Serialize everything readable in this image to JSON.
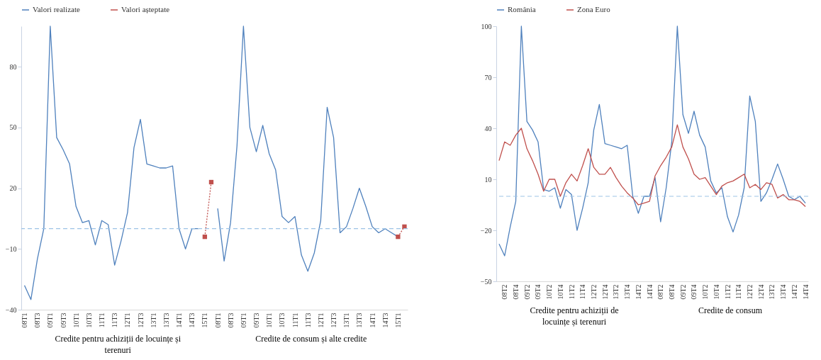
{
  "chart_data": [
    {
      "type": "line",
      "categories": [
        "08T1",
        null,
        "08T3",
        null,
        "09T1",
        null,
        "09T3",
        null,
        "10T1",
        null,
        "10T3",
        null,
        "11T1",
        null,
        "11T3",
        null,
        "12T1",
        null,
        "12T3",
        null,
        "13T1",
        null,
        "13T3",
        null,
        "14T1",
        null,
        "14T3",
        null,
        "15T1",
        null,
        "08T1",
        null,
        "08T3",
        null,
        "09T1",
        null,
        "09T3",
        null,
        "10T1",
        null,
        "10T3",
        null,
        "11T1",
        null,
        "11T3",
        null,
        "12T1",
        null,
        "12T3",
        null,
        "13T1",
        null,
        "13T3",
        null,
        "14T1",
        null,
        "14T3",
        null,
        "15T1",
        null
      ],
      "series": [
        {
          "name": "Valori realizate",
          "color": "#4f81bd",
          "values": [
            -28,
            -35,
            -15,
            0,
            100,
            45,
            39,
            32,
            11,
            3,
            4,
            -8,
            4,
            2,
            -18,
            -6,
            8,
            40,
            54,
            32,
            31,
            30,
            30,
            31,
            0,
            -10,
            0,
            0,
            null,
            null,
            10,
            -16,
            3,
            41,
            100,
            50,
            38,
            51,
            37,
            29,
            6,
            3,
            6,
            -13,
            -21,
            -12,
            4,
            60,
            45,
            -2,
            1,
            10,
            20,
            11,
            1,
            -2,
            0,
            -2,
            -4,
            null
          ]
        },
        {
          "name": "Valori așteptate",
          "color": "#c0504d",
          "line_style": "dotted",
          "marker": "square",
          "values": [
            null,
            null,
            null,
            null,
            null,
            null,
            null,
            null,
            null,
            null,
            null,
            null,
            null,
            null,
            null,
            null,
            null,
            null,
            null,
            null,
            null,
            null,
            null,
            null,
            null,
            null,
            null,
            null,
            -4,
            23,
            null,
            null,
            null,
            null,
            null,
            null,
            null,
            null,
            null,
            null,
            null,
            null,
            null,
            null,
            null,
            null,
            null,
            null,
            null,
            null,
            null,
            null,
            null,
            null,
            null,
            null,
            null,
            null,
            -4,
            1
          ]
        }
      ],
      "ylim": [
        -40,
        100
      ],
      "yticks": [
        -40,
        -10,
        20,
        50,
        80
      ],
      "legend": "top",
      "ref_lines": [
        {
          "axis": "y",
          "value": 0,
          "line_style": "dashed",
          "color": "#9dc3e6"
        }
      ],
      "annotations": [
        "Credite pentru achiziții de locuințe și terenuri",
        "Credite de consum și alte credite"
      ]
    },
    {
      "type": "line",
      "categories": [
        null,
        "08T2",
        null,
        "08T4",
        null,
        "09T2",
        null,
        "09T4",
        null,
        "10T2",
        null,
        "10T4",
        null,
        "11T2",
        null,
        "11T4",
        null,
        "12T2",
        null,
        "12T4",
        null,
        "13T2",
        null,
        "13T4",
        null,
        "14T2",
        null,
        "14T4",
        null,
        "08T2",
        null,
        "08T4",
        null,
        "09T2",
        null,
        "09T4",
        null,
        "10T2",
        null,
        "10T4",
        null,
        "11T2",
        null,
        "11T4",
        null,
        "12T2",
        null,
        "12T4",
        null,
        "13T2",
        null,
        "13T4",
        null,
        "14T2",
        null,
        "14T4"
      ],
      "series": [
        {
          "name": "România",
          "color": "#4f81bd",
          "values": [
            -28,
            -35,
            -18,
            -3,
            100,
            44,
            39,
            32,
            4,
            3,
            5,
            -7,
            4,
            1,
            -20,
            -7,
            8,
            39,
            54,
            31,
            30,
            29,
            28,
            30,
            0,
            -10,
            0,
            0,
            11,
            -15,
            5,
            32,
            100,
            48,
            37,
            50,
            36,
            29,
            9,
            2,
            5,
            -12,
            -21,
            -11,
            5,
            59,
            44,
            -3,
            2,
            10,
            19,
            10,
            0,
            -2,
            0,
            -4
          ]
        },
        {
          "name": "Zona Euro",
          "color": "#c0504d",
          "values": [
            21,
            32,
            30,
            36,
            40,
            28,
            21,
            13,
            3,
            10,
            10,
            0,
            8,
            13,
            9,
            18,
            28,
            17,
            13,
            13,
            17,
            11,
            6,
            2,
            -1,
            -5,
            -4,
            -3,
            12,
            18,
            23,
            29,
            42,
            29,
            22,
            13,
            10,
            11,
            6,
            1,
            6,
            8,
            9,
            11,
            13,
            5,
            7,
            4,
            8,
            7,
            -1,
            1,
            -2,
            -2,
            -3,
            -6
          ]
        }
      ],
      "ylim": [
        -50,
        100
      ],
      "yticks": [
        -50,
        -20,
        10,
        40,
        70,
        100
      ],
      "legend": "top",
      "ref_lines": [
        {
          "axis": "y",
          "value": 0,
          "line_style": "dashed",
          "color": "#9dc3e6"
        }
      ],
      "annotations": [
        "Credite pentru achiziții de locuințe și terenuri",
        "Credite de consum"
      ]
    }
  ]
}
